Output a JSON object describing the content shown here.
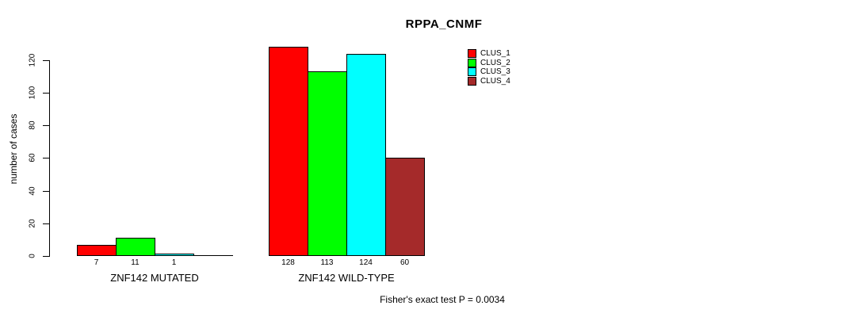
{
  "title": "RPPA_CNMF",
  "footer": "Fisher's exact test P = 0.0034",
  "chart_data": {
    "type": "bar",
    "title": "RPPA_CNMF",
    "xlabel": "",
    "ylabel": "number of cases",
    "ylim": [
      0,
      130
    ],
    "yticks": [
      0,
      20,
      40,
      60,
      80,
      100,
      120
    ],
    "grid": false,
    "legend_position": "top-right",
    "bar_outline_color": "#000000",
    "show_zero_value_labels": false,
    "categories": [
      "ZNF142 MUTATED",
      "ZNF142 WILD-TYPE"
    ],
    "series": [
      {
        "name": "CLUS_1",
        "color": "#FF0000",
        "values": [
          7,
          128
        ]
      },
      {
        "name": "CLUS_2",
        "color": "#00FF00",
        "values": [
          11,
          113
        ]
      },
      {
        "name": "CLUS_3",
        "color": "#00FFFF",
        "values": [
          1,
          124
        ]
      },
      {
        "name": "CLUS_4",
        "color": "#A52A2A",
        "values": [
          0,
          60
        ]
      }
    ],
    "footer": "Fisher's exact test P = 0.0034"
  }
}
